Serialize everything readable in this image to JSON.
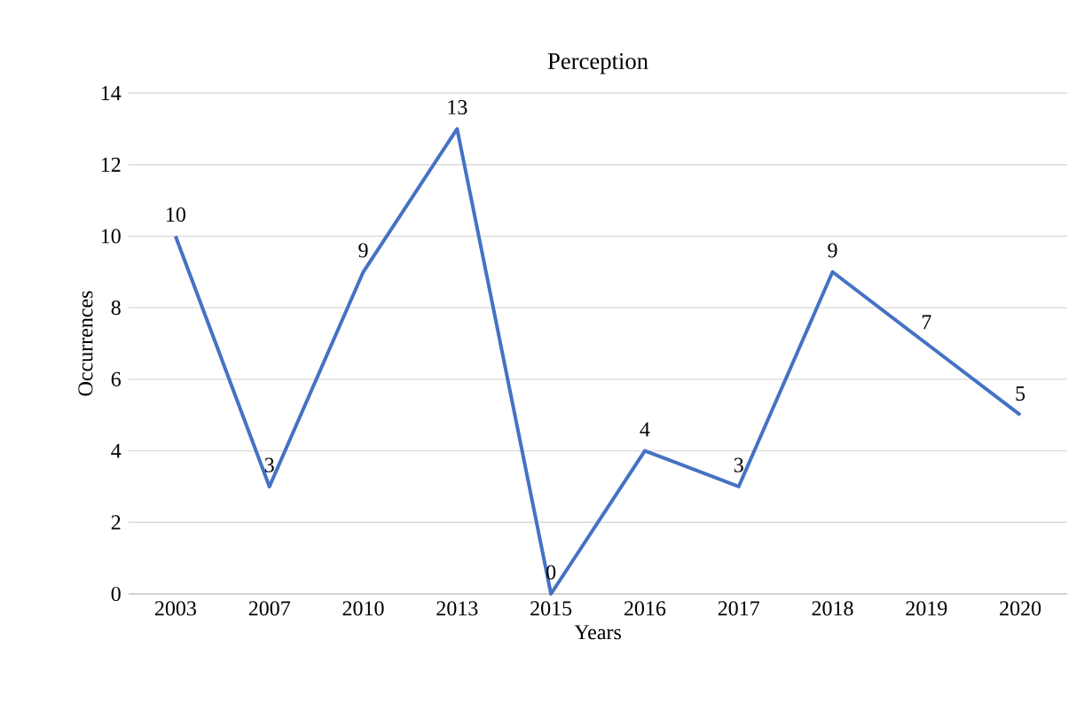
{
  "chart_data": {
    "type": "line",
    "title": "Perception",
    "xlabel": "Years",
    "ylabel": "Occurrences",
    "categories": [
      "2003",
      "2007",
      "2010",
      "2013",
      "2015",
      "2016",
      "2017",
      "2018",
      "2019",
      "2020"
    ],
    "values": [
      10,
      3,
      9,
      13,
      0,
      4,
      3,
      9,
      7,
      5
    ],
    "color": "#4472c4",
    "ylim": [
      0,
      14
    ],
    "yticks": [
      0,
      2,
      4,
      6,
      8,
      10,
      12,
      14
    ],
    "grid": "y",
    "data_labels": true,
    "marker": "none",
    "line_style": "solid"
  }
}
